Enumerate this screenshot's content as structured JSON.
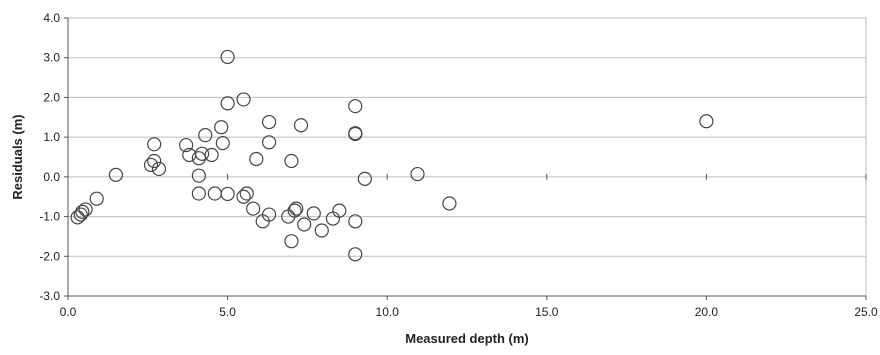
{
  "chart_data": {
    "type": "scatter",
    "title": "",
    "xlabel": "Measured depth (m)",
    "ylabel": "Residuals (m)",
    "xlim": [
      0,
      25
    ],
    "ylim": [
      -3,
      4
    ],
    "x_ticks": [
      "0.0",
      "5.0",
      "10.0",
      "15.0",
      "20.0",
      "25.0"
    ],
    "y_ticks": [
      "4.0",
      "3.0",
      "2.0",
      "1.0",
      "0.0",
      "-1.0",
      "-2.0",
      "-3.0"
    ],
    "grid": "horizontal",
    "marker": "open-circle",
    "colors": {
      "marker_stroke": "#444444",
      "grid": "#bdbdbd",
      "axis": "#555555"
    },
    "series": [
      {
        "points": [
          [
            0.3,
            -1.02
          ],
          [
            0.4,
            -0.95
          ],
          [
            0.45,
            -0.88
          ],
          [
            0.55,
            -0.82
          ],
          [
            0.9,
            -0.55
          ],
          [
            1.5,
            0.05
          ],
          [
            2.6,
            0.3
          ],
          [
            2.7,
            0.82
          ],
          [
            2.7,
            0.4
          ],
          [
            2.85,
            0.2
          ],
          [
            3.7,
            0.8
          ],
          [
            3.8,
            0.55
          ],
          [
            4.1,
            0.47
          ],
          [
            4.2,
            0.58
          ],
          [
            4.3,
            1.05
          ],
          [
            4.1,
            0.03
          ],
          [
            4.1,
            -0.42
          ],
          [
            4.5,
            0.55
          ],
          [
            4.6,
            -0.42
          ],
          [
            4.8,
            1.25
          ],
          [
            4.85,
            0.85
          ],
          [
            5.0,
            3.02
          ],
          [
            5.0,
            1.85
          ],
          [
            5.0,
            -0.43
          ],
          [
            5.5,
            1.95
          ],
          [
            5.5,
            -0.5
          ],
          [
            5.6,
            -0.42
          ],
          [
            5.8,
            -0.8
          ],
          [
            5.9,
            0.45
          ],
          [
            6.1,
            -1.12
          ],
          [
            6.3,
            1.38
          ],
          [
            6.3,
            0.87
          ],
          [
            6.3,
            -0.95
          ],
          [
            6.9,
            -1.0
          ],
          [
            7.0,
            0.4
          ],
          [
            7.0,
            -1.62
          ],
          [
            7.1,
            -0.85
          ],
          [
            7.15,
            -0.8
          ],
          [
            7.3,
            1.3
          ],
          [
            7.4,
            -1.2
          ],
          [
            7.7,
            -0.92
          ],
          [
            7.95,
            -1.35
          ],
          [
            8.3,
            -1.05
          ],
          [
            8.5,
            -0.85
          ],
          [
            9.0,
            1.78
          ],
          [
            9.0,
            1.1
          ],
          [
            9.0,
            1.08
          ],
          [
            9.0,
            -1.12
          ],
          [
            9.0,
            -1.95
          ],
          [
            9.3,
            -0.05
          ],
          [
            10.95,
            0.07
          ],
          [
            11.95,
            -0.67
          ],
          [
            20.0,
            1.4
          ]
        ]
      }
    ]
  }
}
